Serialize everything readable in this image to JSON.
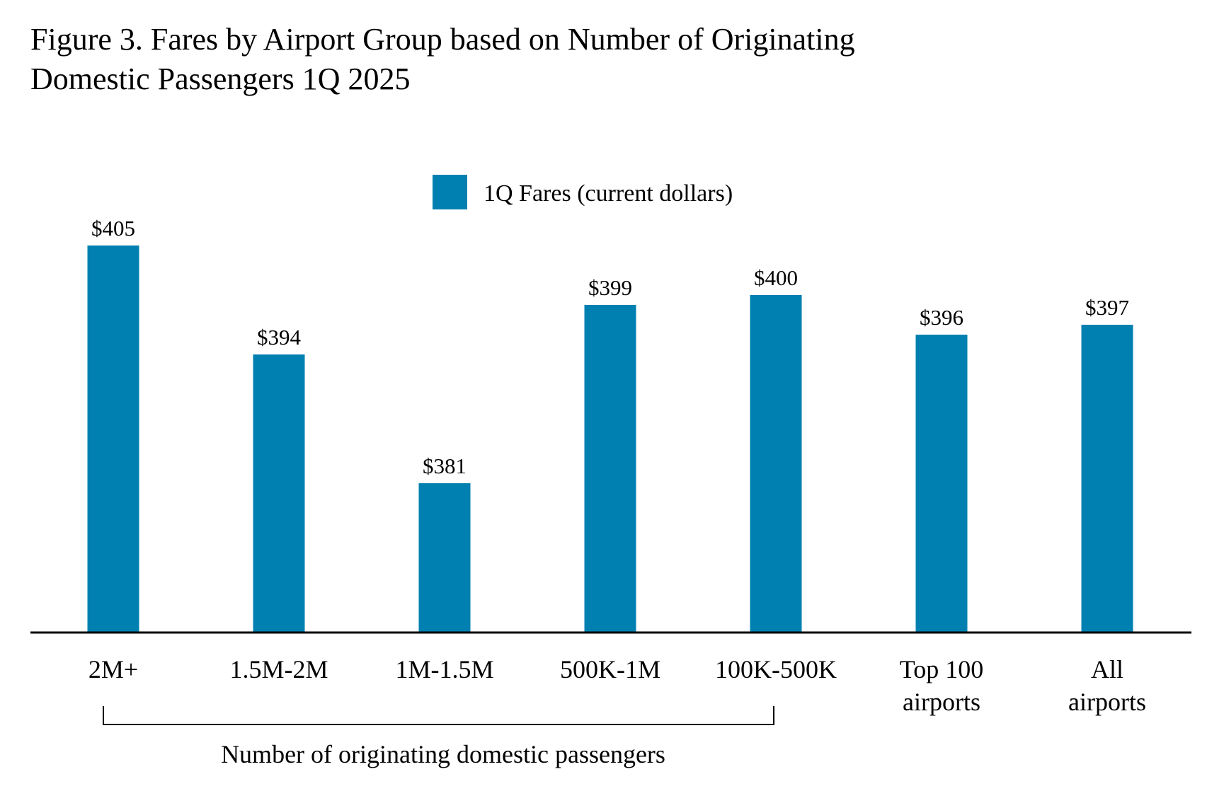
{
  "chart_data": {
    "type": "bar",
    "title_line1": "Figure 3. Fares by Airport Group based on Number of Originating",
    "title_line2": "Domestic Passengers 1Q 2025",
    "categories": [
      [
        "2M+"
      ],
      [
        "1.5M-2M"
      ],
      [
        "1M-1.5M"
      ],
      [
        "500K-1M"
      ],
      [
        "100K-500K"
      ],
      [
        "Top 100",
        "airports"
      ],
      [
        "All",
        "airports"
      ]
    ],
    "series": [
      {
        "name": "1Q Fares (current dollars)",
        "values": [
          405,
          394,
          381,
          399,
          400,
          396,
          397
        ],
        "color": "#0080B0"
      }
    ],
    "data_labels": [
      "$405",
      "$394",
      "$381",
      "$399",
      "$400",
      "$396",
      "$397"
    ],
    "bracket_label": "Number of originating domestic passengers",
    "legend_position": "top-center",
    "ylim": [
      366,
      405
    ],
    "grid": false,
    "xlabel": "",
    "ylabel": ""
  }
}
